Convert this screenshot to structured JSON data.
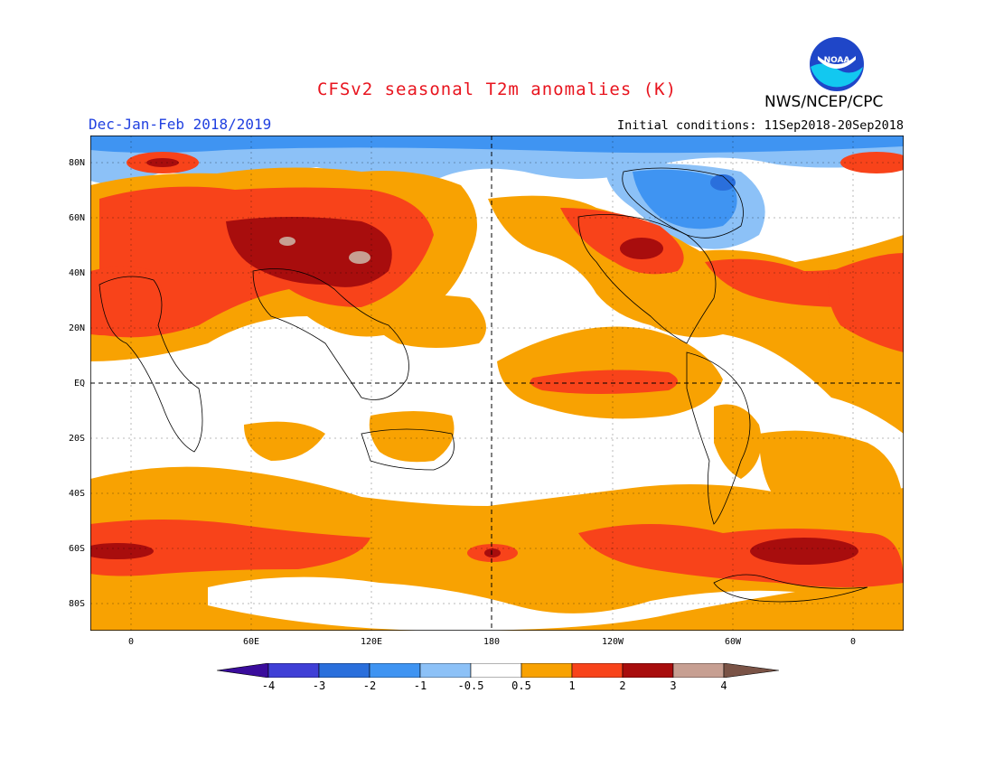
{
  "title": "CFSv2 seasonal T2m anomalies (K)",
  "season": "Dec-Jan-Feb 2018/2019",
  "initial_conditions": "Initial conditions: 11Sep2018-20Sep2018",
  "agency": "NWS/NCEP/CPC",
  "logo_text": "NOAA",
  "lat_labels": [
    "80N",
    "60N",
    "40N",
    "20N",
    "EQ",
    "20S",
    "40S",
    "60S",
    "80S"
  ],
  "lon_labels": [
    "0",
    "60E",
    "120E",
    "180",
    "120W",
    "60W",
    "0"
  ],
  "colorbar": {
    "labels": [
      "-4",
      "-3",
      "-2",
      "-1",
      "-0.5",
      "0.5",
      "1",
      "2",
      "3",
      "4"
    ],
    "colors": [
      "#3a0c9c",
      "#3f3fd6",
      "#2a6fdc",
      "#3f94f2",
      "#8cc1f7",
      "#ffffff",
      "#f8a202",
      "#f8431a",
      "#a80d0d",
      "#c79f92",
      "#7a5346"
    ]
  }
}
